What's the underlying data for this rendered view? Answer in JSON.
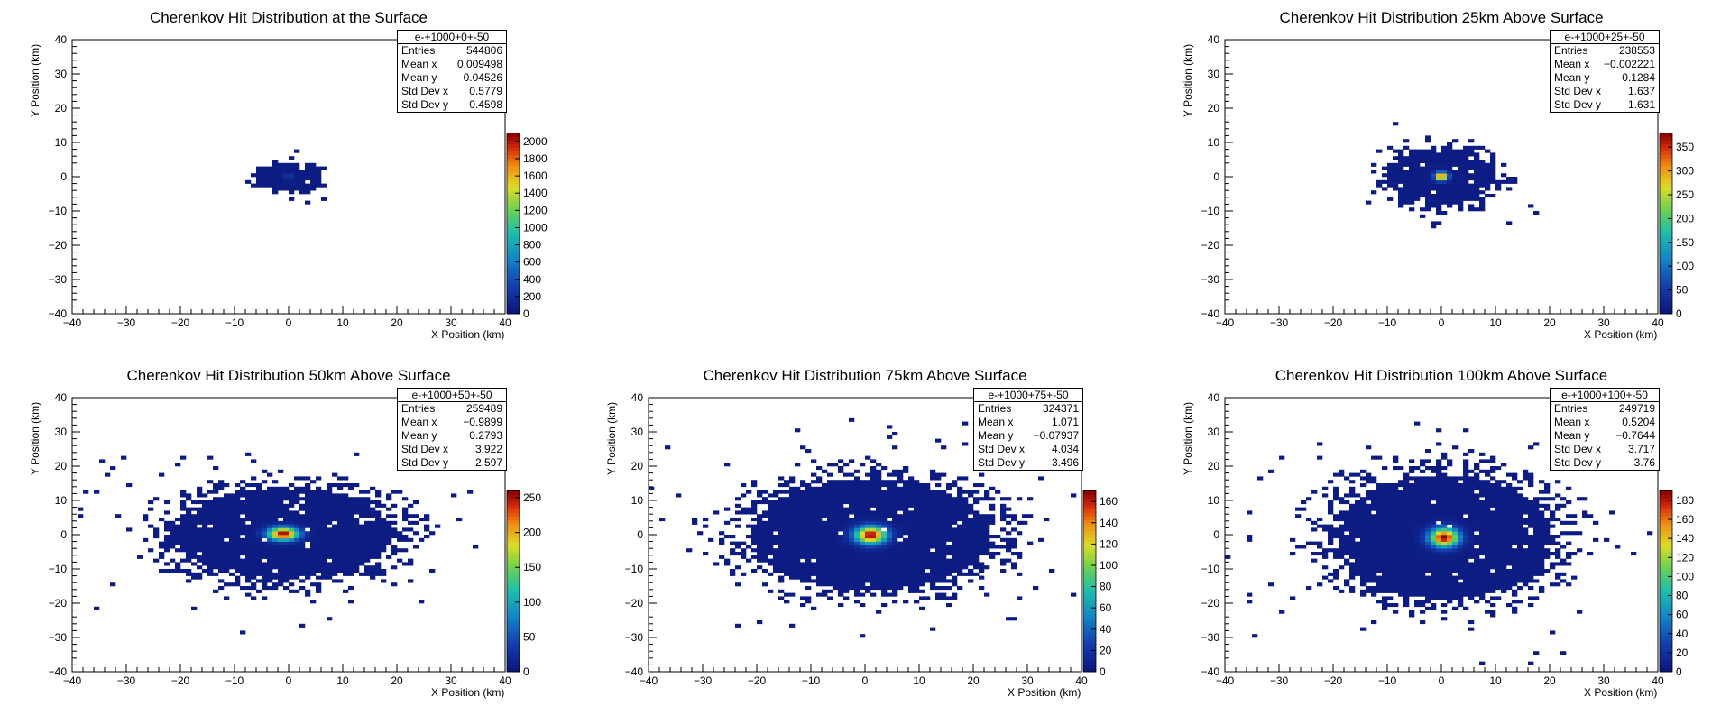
{
  "axis": {
    "xlabel": "X Position (km)",
    "ylabel": "Y Position (km)",
    "xlim": [
      -40,
      40
    ],
    "ylim": [
      -40,
      40
    ],
    "ticks": [
      -40,
      -30,
      -20,
      -10,
      0,
      10,
      20,
      30,
      40
    ]
  },
  "colors": {
    "low": "#0a1e7a",
    "mid": "#1ec8a0",
    "high": "#8b0000"
  },
  "chart_data": [
    {
      "type": "heatmap",
      "title": "Cherenkov Hit Distribution at the Surface",
      "stats": {
        "name": "e-+1000+0+-50",
        "entries": "544806",
        "mean_x": "0.009498",
        "mean_y": "0.04526",
        "std_x": "0.5779",
        "std_y": "0.4598"
      },
      "z_max": 2100,
      "z_ticks": [
        0,
        200,
        400,
        600,
        800,
        1000,
        1200,
        1400,
        1600,
        1800,
        2000
      ],
      "mean": [
        0.009498,
        0.04526
      ],
      "std": [
        0.5779,
        0.4598
      ],
      "peak": 2100,
      "extent": [
        6,
        4
      ]
    },
    {
      "type": "heatmap",
      "title": "Cherenkov Hit Distribution 25km Above Surface",
      "stats": {
        "name": "e-+1000+25+-50",
        "entries": "238553",
        "mean_x": "−0.002221",
        "mean_y": "0.1284",
        "std_x": "1.637",
        "std_y": "1.631"
      },
      "z_max": 380,
      "z_ticks": [
        0,
        50,
        100,
        150,
        200,
        250,
        300,
        350
      ],
      "mean": [
        -0.002221,
        0.1284
      ],
      "std": [
        1.637,
        1.631
      ],
      "peak": 380,
      "extent": [
        10,
        8
      ]
    },
    {
      "type": "heatmap",
      "title": "Cherenkov Hit Distribution 50km Above Surface",
      "stats": {
        "name": "e-+1000+50+-50",
        "entries": "259489",
        "mean_x": "−0.9899",
        "mean_y": "0.2793",
        "std_x": "3.922",
        "std_y": "2.597"
      },
      "z_max": 260,
      "z_ticks": [
        0,
        50,
        100,
        150,
        200,
        250
      ],
      "mean": [
        -0.9899,
        0.2793
      ],
      "std": [
        3.922,
        2.597
      ],
      "peak": 260,
      "extent": [
        20,
        13
      ]
    },
    {
      "type": "heatmap",
      "title": "Cherenkov Hit Distribution 75km Above Surface",
      "stats": {
        "name": "e-+1000+75+-50",
        "entries": "324371",
        "mean_x": "1.071",
        "mean_y": "−0.07937",
        "std_x": "4.034",
        "std_y": "3.496"
      },
      "z_max": 170,
      "z_ticks": [
        0,
        20,
        40,
        60,
        80,
        100,
        120,
        140,
        160
      ],
      "mean": [
        1.071,
        -0.07937
      ],
      "std": [
        4.034,
        3.496
      ],
      "peak": 170,
      "extent": [
        22,
        16
      ]
    },
    {
      "type": "heatmap",
      "title": "Cherenkov Hit Distribution 100km Above Surface",
      "stats": {
        "name": "e-+1000+100+-50",
        "entries": "249719",
        "mean_x": "0.5204",
        "mean_y": "−0.7644",
        "std_x": "3.717",
        "std_y": "3.76"
      },
      "z_max": 190,
      "z_ticks": [
        0,
        20,
        40,
        60,
        80,
        100,
        120,
        140,
        160,
        180
      ],
      "mean": [
        0.5204,
        -0.7644
      ],
      "std": [
        3.717,
        3.76
      ],
      "peak": 190,
      "extent": [
        20,
        18
      ]
    }
  ],
  "stat_labels": {
    "entries": "Entries",
    "mean_x": "Mean x",
    "mean_y": "Mean y",
    "std_x": "Std Dev x",
    "std_y": "Std Dev y"
  }
}
